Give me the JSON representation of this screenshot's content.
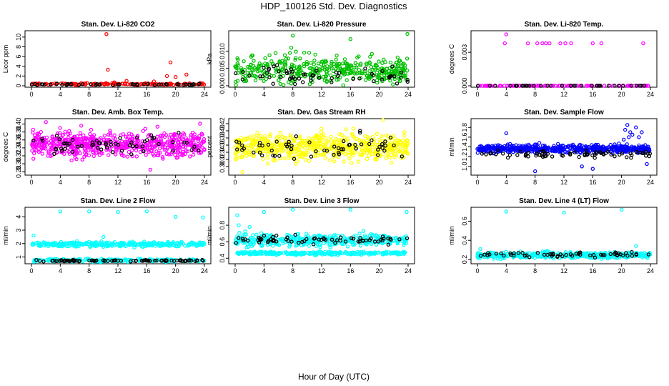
{
  "figure": {
    "title": "HDP_100126  Std. Dev. Diagnostics",
    "xlabel": "Hour of Day (UTC)"
  },
  "chart_data": [
    {
      "type": "scatter",
      "title": "Stan. Dev. Li-820 CO2",
      "ylabel": "Licor ppm",
      "color": "#ff0000",
      "xlim": [
        0,
        24
      ],
      "ylim": [
        0,
        11
      ],
      "yticks": [
        "0",
        "2",
        "4",
        "6",
        "8",
        "10"
      ],
      "ytick_values": [
        0,
        2,
        4,
        6,
        8,
        10
      ],
      "xticks": [
        "0",
        "4",
        "8",
        "12",
        "16",
        "20",
        "24"
      ],
      "base": 0.35,
      "spread": 0.2,
      "n": 140,
      "black_base": 0.3,
      "black_spread": 0.15,
      "black_n": 55,
      "outliers": [
        [
          10.4,
          10.6
        ],
        [
          10.6,
          3.3
        ],
        [
          11.5,
          0.7
        ],
        [
          13.2,
          1.0
        ],
        [
          17.0,
          0.9
        ],
        [
          18.8,
          2.0
        ],
        [
          19.3,
          4.8
        ],
        [
          20.0,
          1.8
        ],
        [
          21.5,
          2.3
        ],
        [
          15.8,
          0.5
        ]
      ]
    },
    {
      "type": "scatter",
      "title": "Stan. Dev. Li-820 Pressure",
      "ylabel": "kPa",
      "color": "#00c000",
      "xlim": [
        0,
        24
      ],
      "ylim": [
        0,
        0.0155
      ],
      "yticks": [
        "0.000",
        "0.005",
        "0.010"
      ],
      "ytick_values": [
        0,
        0.005,
        0.01
      ],
      "xticks": [
        "0",
        "4",
        "8",
        "12",
        "16",
        "20",
        "24"
      ],
      "base": 0.0045,
      "spread": 0.0045,
      "n": 420,
      "black_base": 0.003,
      "black_spread": 0.003,
      "black_n": 60,
      "outliers": [
        [
          8.0,
          0.0145
        ],
        [
          7.8,
          0.011
        ],
        [
          7.6,
          0.0095
        ],
        [
          16.0,
          0.0135
        ],
        [
          23.9,
          0.015
        ],
        [
          8.4,
          0.008
        ]
      ]
    },
    {
      "type": "scatter",
      "title": "Stan. Dev. Li-820 Temp.",
      "ylabel": "degrees C",
      "color": "#ff00ff",
      "xlim": [
        0,
        24
      ],
      "ylim": [
        0,
        0.0048
      ],
      "yticks": [
        "0.000",
        "0.003"
      ],
      "ytick_values": [
        0,
        0.003
      ],
      "xticks": [
        "0",
        "4",
        "8",
        "12",
        "16",
        "20",
        "24"
      ],
      "base": 0.0,
      "spread": 0.0,
      "n": 120,
      "black_base": 0.0,
      "black_spread": 0.0,
      "black_n": 40,
      "outliers": [
        [
          4.0,
          0.0046
        ],
        [
          3.8,
          0.0038
        ],
        [
          7.0,
          0.0038
        ],
        [
          8.3,
          0.0038
        ],
        [
          9.0,
          0.0038
        ],
        [
          9.5,
          0.0038
        ],
        [
          10.0,
          0.0038
        ],
        [
          11.5,
          0.0038
        ],
        [
          12.2,
          0.0038
        ],
        [
          13.0,
          0.0038
        ],
        [
          16.0,
          0.0038
        ],
        [
          17.2,
          0.0038
        ],
        [
          23.0,
          0.0038
        ],
        [
          0.4,
          0.0
        ]
      ]
    },
    {
      "type": "scatter",
      "title": "Stan. Dev. Amb. Box Temp.",
      "ylabel": "degrees C",
      "color": "#ff00ff",
      "xlim": [
        0,
        24
      ],
      "ylim": [
        0.275,
        0.41
      ],
      "yticks": [
        "0.28",
        "0.30",
        "0.32",
        "0.34",
        "0.36",
        "0.38",
        "0.40"
      ],
      "ytick_values": [
        0.28,
        0.3,
        0.32,
        0.34,
        0.36,
        0.38,
        0.4
      ],
      "xticks": [
        "0",
        "4",
        "8",
        "12",
        "16",
        "20",
        "24"
      ],
      "base": 0.35,
      "spread": 0.035,
      "n": 600,
      "black_base": 0.345,
      "black_spread": 0.03,
      "black_n": 60,
      "outliers": [
        [
          16.5,
          0.285
        ],
        [
          2.0,
          0.405
        ],
        [
          23.4,
          0.401
        ]
      ]
    },
    {
      "type": "scatter",
      "title": "Stan. Dev. Gas Stream RH",
      "ylabel": "percent",
      "color": "#ffff00",
      "xlim": [
        0,
        24
      ],
      "ylim": [
        0.28,
        0.43
      ],
      "yticks": [
        "0.30",
        "0.32",
        "0.34",
        "0.36",
        "0.38",
        "0.40",
        "0.42"
      ],
      "ytick_values": [
        0.3,
        0.32,
        0.34,
        0.36,
        0.38,
        0.4,
        0.42
      ],
      "xticks": [
        "0",
        "4",
        "8",
        "12",
        "16",
        "20",
        "24"
      ],
      "base": 0.355,
      "spread": 0.04,
      "n": 600,
      "black_base": 0.355,
      "black_spread": 0.035,
      "black_n": 60,
      "outliers": [
        [
          20.5,
          0.43
        ],
        [
          1.0,
          0.285
        ]
      ]
    },
    {
      "type": "scatter",
      "title": "Stan. Dev. Sample Flow",
      "ylabel": "ml/min",
      "color": "#0000ff",
      "xlim": [
        0,
        24
      ],
      "ylim": [
        0.85,
        1.95
      ],
      "yticks": [
        "1.0",
        "1.2",
        "1.4",
        "1.6",
        "1.8"
      ],
      "ytick_values": [
        1.0,
        1.2,
        1.4,
        1.6,
        1.8
      ],
      "xticks": [
        "0",
        "4",
        "8",
        "12",
        "16",
        "20",
        "24"
      ],
      "base": 1.36,
      "spread": 0.09,
      "n": 560,
      "black_base": 1.26,
      "black_spread": 0.08,
      "black_n": 70,
      "outliers": [
        [
          20.5,
          1.75
        ],
        [
          20.8,
          1.85
        ],
        [
          21.2,
          1.7
        ],
        [
          21.5,
          1.65
        ],
        [
          22.0,
          1.8
        ],
        [
          22.4,
          1.6
        ],
        [
          21.0,
          1.6
        ],
        [
          22.8,
          1.7
        ],
        [
          4.0,
          1.68
        ],
        [
          8.0,
          0.9
        ],
        [
          16.0,
          0.95
        ],
        [
          14.5,
          1.0
        ],
        [
          23.5,
          1.05
        ],
        [
          20.3,
          1.55
        ]
      ]
    },
    {
      "type": "scatter",
      "title": "Stan. Dev. Line 2 Flow",
      "ylabel": "ml/min",
      "color": "#00ffff",
      "xlim": [
        0,
        24
      ],
      "ylim": [
        0.6,
        4.6
      ],
      "yticks": [
        "1",
        "2",
        "3",
        "4"
      ],
      "ytick_values": [
        1,
        2,
        3,
        4
      ],
      "xticks": [
        "0",
        "4",
        "8",
        "12",
        "16",
        "20",
        "24"
      ],
      "base": 1.95,
      "spread": 0.2,
      "n": 300,
      "black_base": 0.72,
      "black_spread": 0.06,
      "black_n": 90,
      "lower_cyan": 0.75,
      "outliers": [
        [
          4.0,
          4.4
        ],
        [
          8.0,
          4.4
        ],
        [
          12.0,
          4.35
        ],
        [
          16.0,
          4.4
        ],
        [
          20.0,
          4.0
        ],
        [
          23.8,
          3.95
        ],
        [
          0.3,
          2.6
        ],
        [
          10.0,
          2.5
        ]
      ]
    },
    {
      "type": "scatter",
      "title": "Stan. Dev. Line 3 Flow",
      "ylabel": "ml/min",
      "color": "#00ffff",
      "xlim": [
        0,
        24
      ],
      "ylim": [
        0.35,
        1.0
      ],
      "yticks": [
        "0.4",
        "0.6",
        "0.8"
      ],
      "ytick_values": [
        0.4,
        0.6,
        0.8
      ],
      "xticks": [
        "0",
        "4",
        "8",
        "12",
        "16",
        "20",
        "24"
      ],
      "base": 0.62,
      "spread": 0.08,
      "n": 400,
      "black_base": 0.63,
      "black_spread": 0.06,
      "black_n": 70,
      "lower_cyan": 0.46,
      "outliers": [
        [
          0.3,
          0.92
        ],
        [
          4.0,
          0.96
        ],
        [
          8.0,
          0.99
        ],
        [
          16.0,
          0.99
        ],
        [
          23.8,
          0.96
        ],
        [
          0.5,
          0.8
        ],
        [
          2.0,
          0.78
        ]
      ]
    },
    {
      "type": "scatter",
      "title": "Stan. Dev. Line 4 (LT) Flow",
      "ylabel": "ml/min",
      "color": "#00ffff",
      "xlim": [
        0,
        24
      ],
      "ylim": [
        0.17,
        0.73
      ],
      "yticks": [
        "0.2",
        "0.4",
        "0.6"
      ],
      "ytick_values": [
        0.2,
        0.4,
        0.6
      ],
      "xticks": [
        "0",
        "4",
        "8",
        "12",
        "16",
        "20",
        "24"
      ],
      "base": 0.245,
      "spread": 0.035,
      "n": 450,
      "black_base": 0.25,
      "black_spread": 0.03,
      "black_n": 60,
      "outliers": [
        [
          4.0,
          0.7
        ],
        [
          12.0,
          0.69
        ],
        [
          20.0,
          0.72
        ],
        [
          0.4,
          0.31
        ],
        [
          22.0,
          0.34
        ]
      ]
    }
  ]
}
